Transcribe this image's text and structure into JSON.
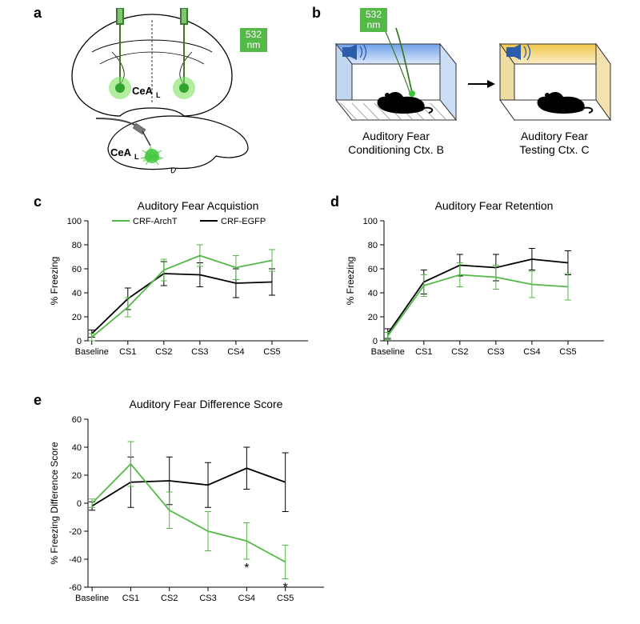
{
  "panels": {
    "a": {
      "label": "a",
      "wavelength": "532\nnm",
      "region": "CeA",
      "region_sub": "L"
    },
    "b": {
      "label": "b",
      "wavelength": "532\nnm",
      "conditioning_top": "Auditory Fear",
      "conditioning_bottom": "Conditioning Ctx. B",
      "testing_top": "Auditory Fear",
      "testing_bottom": "Testing Ctx. C"
    }
  },
  "legend": {
    "series1_name": "CRF-ArchT",
    "series1_color": "#55b948",
    "series2_name": "CRF-EGFP",
    "series2_color": "#000000"
  },
  "axis_categories": [
    "Baseline",
    "CS1",
    "CS2",
    "CS3",
    "CS4",
    "CS5"
  ],
  "chart_c": {
    "title": "Auditory Fear Acquistion",
    "ylabel": "% Freezing",
    "ylim": [
      0,
      100
    ],
    "ytick_step": 20,
    "series1": {
      "values": [
        3,
        28,
        59,
        71,
        61,
        67
      ],
      "err": [
        3,
        8,
        9,
        9,
        10,
        9
      ]
    },
    "series2": {
      "values": [
        6,
        35,
        56,
        55,
        48,
        49
      ],
      "err": [
        3,
        9,
        10,
        10,
        12,
        11
      ]
    },
    "grid_color": "#e0e0e0",
    "background_color": "#ffffff"
  },
  "chart_d": {
    "title": "Auditory Fear Retention",
    "ylabel": "% Freezing",
    "ylim": [
      0,
      100
    ],
    "ytick_step": 20,
    "series1": {
      "values": [
        4,
        46,
        55,
        53,
        47,
        45
      ],
      "err": [
        3,
        9,
        10,
        10,
        11,
        11
      ]
    },
    "series2": {
      "values": [
        6,
        49,
        63,
        61,
        68,
        65
      ],
      "err": [
        4,
        10,
        9,
        11,
        9,
        10
      ]
    },
    "grid_color": "#e0e0e0",
    "background_color": "#ffffff"
  },
  "chart_e": {
    "title": "Auditory Fear Difference Score",
    "ylabel": "% Freezing Difference Score",
    "ylim": [
      -60,
      60
    ],
    "ytick_step": 20,
    "series1": {
      "values": [
        0,
        28,
        -5,
        -20,
        -27,
        -42
      ],
      "err": [
        3,
        16,
        13,
        14,
        13,
        12
      ],
      "sig_idx": [
        4,
        5
      ]
    },
    "series2": {
      "values": [
        -2,
        15,
        16,
        13,
        25,
        15
      ],
      "err": [
        3,
        18,
        17,
        16,
        15,
        21
      ]
    },
    "sig_marker": "*",
    "grid_color": "#e0e0e0",
    "background_color": "#ffffff"
  },
  "style": {
    "font_family": "Arial",
    "title_fontsize": 14,
    "label_fontsize": 12,
    "tick_fontsize": 11,
    "line_width": 1.8,
    "err_cap": 4
  }
}
